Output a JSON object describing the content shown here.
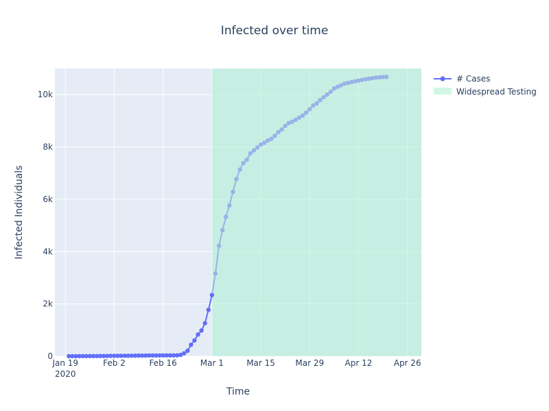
{
  "chart_data": {
    "type": "line",
    "title": "Infected over time",
    "xlabel": "Time",
    "ylabel": "Infected Individuals",
    "x_axis": {
      "type": "date",
      "range": [
        "2020-01-16",
        "2020-04-30"
      ],
      "ticks": [
        {
          "date": "2020-01-19",
          "label": "Jan 19",
          "sublabel": "2020"
        },
        {
          "date": "2020-02-02",
          "label": "Feb 2"
        },
        {
          "date": "2020-02-16",
          "label": "Feb 16"
        },
        {
          "date": "2020-03-01",
          "label": "Mar 1"
        },
        {
          "date": "2020-03-15",
          "label": "Mar 15"
        },
        {
          "date": "2020-03-29",
          "label": "Mar 29"
        },
        {
          "date": "2020-04-12",
          "label": "Apr 12"
        },
        {
          "date": "2020-04-26",
          "label": "Apr 26"
        }
      ]
    },
    "y_axis": {
      "range": [
        0,
        11000
      ],
      "ticks": [
        {
          "value": 0,
          "label": "0"
        },
        {
          "value": 2000,
          "label": "2k"
        },
        {
          "value": 4000,
          "label": "4k"
        },
        {
          "value": 6000,
          "label": "6k"
        },
        {
          "value": 8000,
          "label": "8k"
        },
        {
          "value": 10000,
          "label": "10k"
        }
      ]
    },
    "grid": true,
    "legend_position": "top-right",
    "shaded_region": {
      "name": "Widespread Testing",
      "start": "2020-03-01",
      "end": "2020-04-30",
      "color": "#adf0d3"
    },
    "series": [
      {
        "name": "# Cases",
        "color": "#636efa",
        "faded_color": "#98b3e8",
        "start_date": "2020-01-20",
        "values": [
          1,
          1,
          1,
          2,
          3,
          3,
          4,
          5,
          6,
          7,
          8,
          10,
          12,
          14,
          15,
          16,
          16,
          18,
          19,
          21,
          23,
          24,
          25,
          27,
          28,
          28,
          29,
          30,
          31,
          31,
          31,
          33,
          49,
          108,
          206,
          436,
          604,
          829,
          982,
          1261,
          1774,
          2337,
          3160,
          4219,
          4818,
          5328,
          5767,
          6283,
          6767,
          7134,
          7382,
          7513,
          7755,
          7868,
          7979,
          8089,
          8160,
          8245,
          8312,
          8424,
          8567,
          8667,
          8804,
          8912,
          8967,
          9042,
          9125,
          9203,
          9313,
          9443,
          9583,
          9665,
          9789,
          9902,
          10004,
          10109,
          10236,
          10301,
          10357,
          10423,
          10451,
          10482,
          10511,
          10538,
          10567,
          10592,
          10612,
          10633,
          10652,
          10663,
          10674,
          10680
        ]
      }
    ]
  }
}
